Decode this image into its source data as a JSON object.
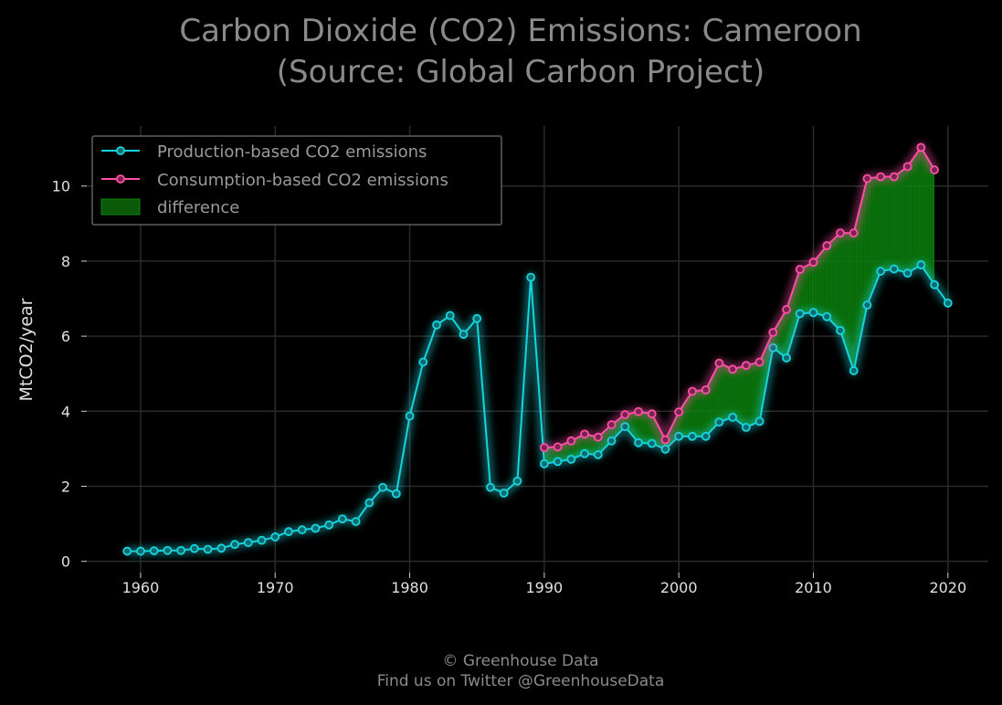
{
  "chart_data": {
    "type": "line",
    "title_line1": "Carbon Dioxide (CO2) Emissions: Cameroon",
    "title_line2": "(Source: Global Carbon Project)",
    "xlabel": "",
    "ylabel": "MtCO2/year",
    "xlim": [
      1956,
      2023
    ],
    "ylim": [
      -0.3,
      11.6
    ],
    "xticks": [
      1960,
      1970,
      1980,
      1990,
      2000,
      2010,
      2020
    ],
    "yticks": [
      0,
      2,
      4,
      6,
      8,
      10
    ],
    "grid": true,
    "legend_position": "top-left",
    "series": [
      {
        "name": "Production-based CO2 emissions",
        "color": "#17d4dc",
        "x": [
          1959,
          1960,
          1961,
          1962,
          1963,
          1964,
          1965,
          1966,
          1967,
          1968,
          1969,
          1970,
          1971,
          1972,
          1973,
          1974,
          1975,
          1976,
          1977,
          1978,
          1979,
          1980,
          1981,
          1982,
          1983,
          1984,
          1985,
          1986,
          1987,
          1988,
          1989,
          1990,
          1991,
          1992,
          1993,
          1994,
          1995,
          1996,
          1997,
          1998,
          1999,
          2000,
          2001,
          2002,
          2003,
          2004,
          2005,
          2006,
          2007,
          2008,
          2009,
          2010,
          2011,
          2012,
          2013,
          2014,
          2015,
          2016,
          2017,
          2018,
          2019,
          2020
        ],
        "values": [
          0.27,
          0.27,
          0.28,
          0.29,
          0.29,
          0.34,
          0.32,
          0.35,
          0.45,
          0.5,
          0.56,
          0.65,
          0.79,
          0.84,
          0.88,
          0.97,
          1.13,
          1.06,
          1.56,
          1.97,
          1.8,
          3.87,
          5.31,
          6.3,
          6.55,
          6.05,
          6.47,
          1.97,
          1.82,
          2.14,
          7.57,
          2.6,
          2.66,
          2.72,
          2.87,
          2.84,
          3.21,
          3.59,
          3.16,
          3.14,
          2.99,
          3.33,
          3.33,
          3.33,
          3.71,
          3.84,
          3.57,
          3.73,
          5.69,
          5.42,
          6.6,
          6.63,
          6.52,
          6.15,
          5.08,
          6.83,
          7.73,
          7.79,
          7.68,
          7.9,
          7.37,
          6.88
        ]
      },
      {
        "name": "Consumption-based CO2 emissions",
        "color": "#ff4fa6",
        "x": [
          1990,
          1991,
          1992,
          1993,
          1994,
          1995,
          1996,
          1997,
          1998,
          1999,
          2000,
          2001,
          2002,
          2003,
          2004,
          2005,
          2006,
          2007,
          2008,
          2009,
          2010,
          2011,
          2012,
          2013,
          2014,
          2015,
          2016,
          2017,
          2018,
          2019
        ],
        "values": [
          3.03,
          3.05,
          3.21,
          3.39,
          3.31,
          3.64,
          3.91,
          3.99,
          3.93,
          3.24,
          3.98,
          4.53,
          4.57,
          5.28,
          5.12,
          5.22,
          5.31,
          6.1,
          6.71,
          7.78,
          7.97,
          8.41,
          8.75,
          8.75,
          10.2,
          10.25,
          10.25,
          10.52,
          11.03,
          10.43
        ]
      }
    ],
    "difference": {
      "name": "difference",
      "color": "#0a7a0a"
    }
  },
  "footer": {
    "line1": "© Greenhouse Data",
    "line2": "Find us on Twitter @GreenhouseData"
  }
}
